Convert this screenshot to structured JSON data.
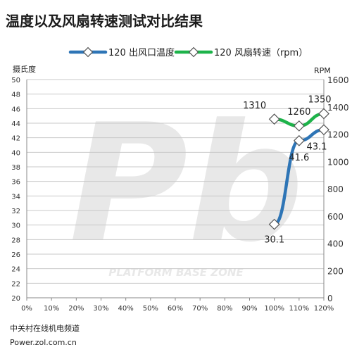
{
  "page": {
    "title": "温度以及风扇转速测试对比结果",
    "footer_line1": "中关村在线机电频道",
    "footer_line2": "Power.zol.com.cn"
  },
  "colors": {
    "temp_series": "#2E75B6",
    "rpm_series": "#1DB34A",
    "grid": "#c8c8c8",
    "watermark": "#e8e8e8"
  },
  "watermark": {
    "logo_text": "Pb",
    "tagline": "PLATFORM BASE ZONE"
  },
  "chart_data": {
    "type": "line",
    "x": [
      "100%",
      "110%",
      "120%"
    ],
    "x_ticks": [
      "0%",
      "10%",
      "20%",
      "30%",
      "40%",
      "50%",
      "60%",
      "70%",
      "80%",
      "90%",
      "100%",
      "110%",
      "120%"
    ],
    "x_numeric_ticks": [
      0,
      10,
      20,
      30,
      40,
      50,
      60,
      70,
      80,
      90,
      100,
      110,
      120
    ],
    "xlim": [
      0,
      120
    ],
    "y_left": {
      "label": "摄氏度",
      "ylim": [
        20,
        50
      ],
      "ticks": [
        20,
        22,
        24,
        26,
        28,
        30,
        32,
        34,
        36,
        38,
        40,
        42,
        44,
        46,
        48,
        50
      ]
    },
    "y_right": {
      "label": "RPM",
      "ylim": [
        0,
        1600
      ],
      "ticks": [
        0,
        200,
        400,
        600,
        800,
        1000,
        1200,
        1400,
        1600
      ]
    },
    "series": [
      {
        "name": "120 出风口温度",
        "axis": "left",
        "x": [
          100,
          110,
          120
        ],
        "values": [
          30.1,
          41.6,
          43.1
        ],
        "labels": [
          "30.1",
          "41.6",
          "43.1"
        ]
      },
      {
        "name": "120 风扇转速（rpm）",
        "axis": "right",
        "x": [
          100,
          110,
          120
        ],
        "values": [
          1310,
          1260,
          1350
        ],
        "labels": [
          "1310",
          "1260",
          "1350"
        ]
      }
    ],
    "legend_position": "top",
    "grid": true
  }
}
